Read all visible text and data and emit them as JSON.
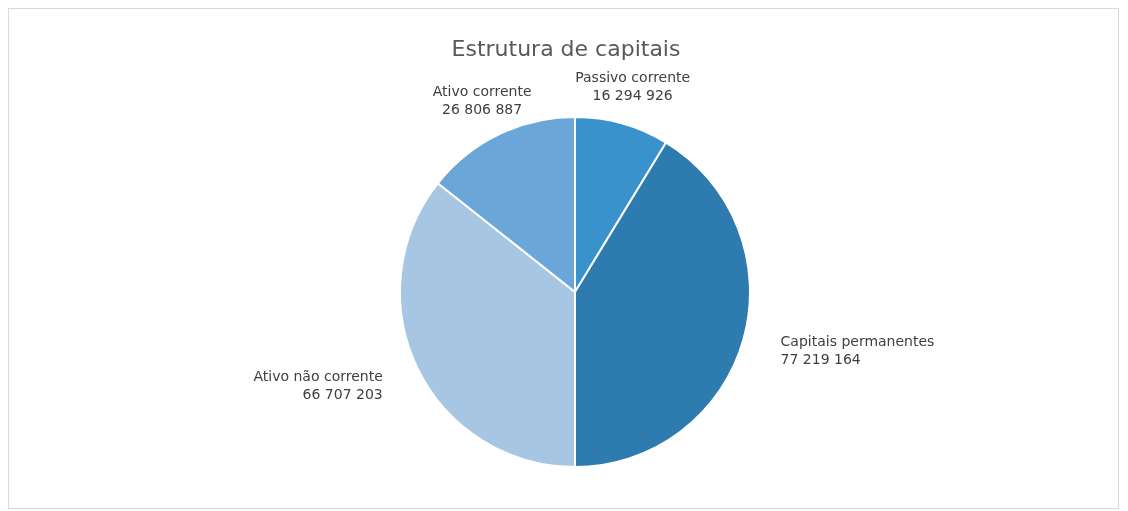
{
  "chart_data": {
    "type": "pie",
    "title": "Estrutura de capitais",
    "categories": [
      "Passivo corrente",
      "Capitais permanentes",
      "Ativo não corrente",
      "Ativo corrente"
    ],
    "values": [
      16294926,
      77219164,
      66707203,
      26806887
    ],
    "colors": [
      "#3a92cc",
      "#2e7bb0",
      "#a6c6e4",
      "#6aa6d8"
    ],
    "data_labels": true,
    "legend": false
  }
}
